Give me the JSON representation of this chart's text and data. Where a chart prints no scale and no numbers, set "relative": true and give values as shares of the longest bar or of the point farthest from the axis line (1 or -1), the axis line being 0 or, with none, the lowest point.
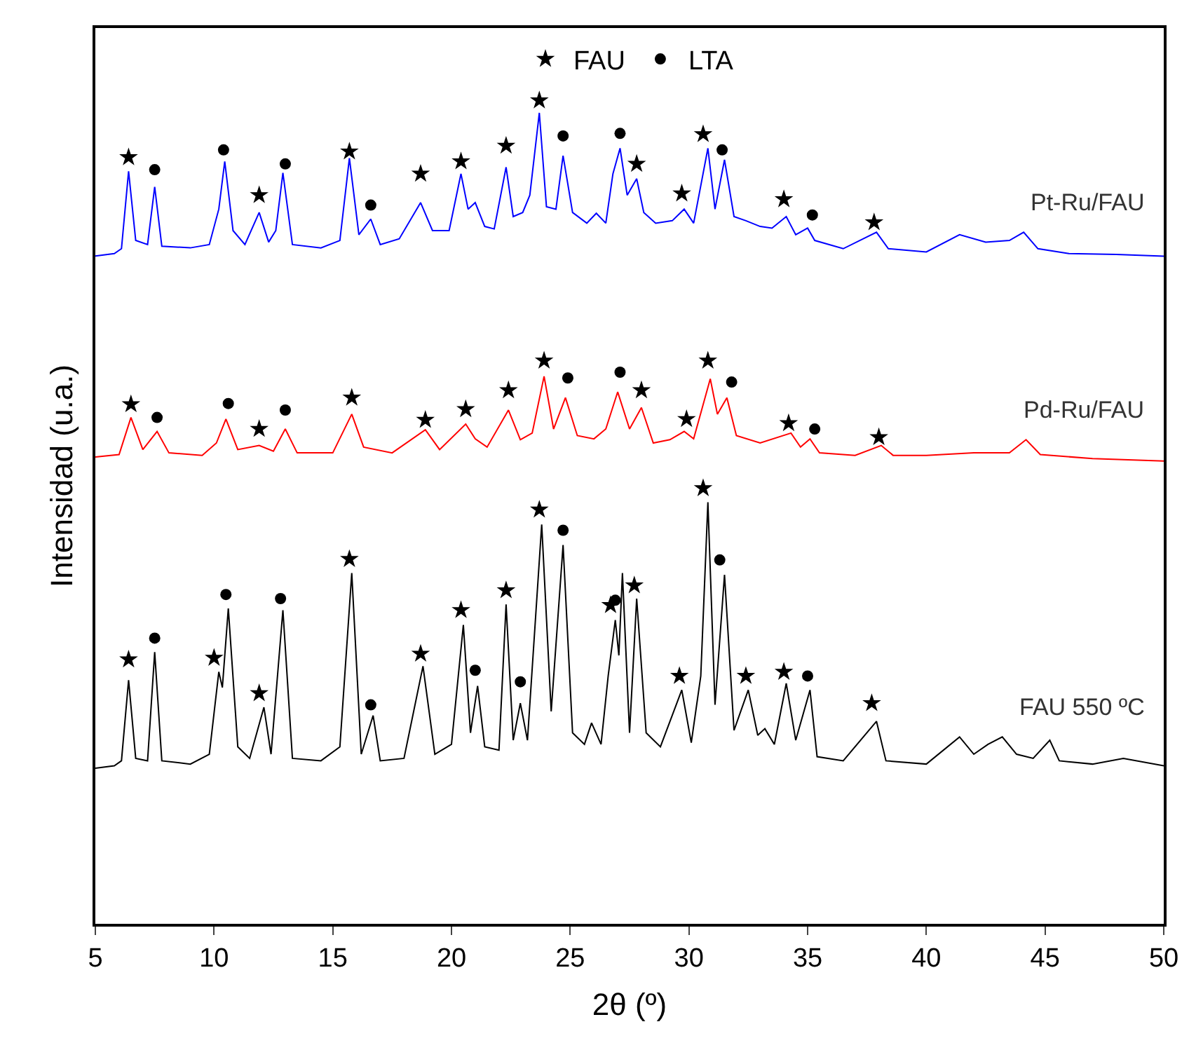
{
  "chart_data": {
    "type": "line",
    "relative": true,
    "xlabel": "2θ (º)",
    "ylabel": "Intensidad (u.a.)",
    "xlim": [
      5,
      50
    ],
    "xticks": [
      5,
      10,
      15,
      20,
      25,
      30,
      35,
      40,
      45,
      50
    ],
    "legend": "top",
    "marker": "none",
    "line_style": "solid",
    "series": [
      {
        "name": "Pt-Ru/FAU",
        "color": "#0000ff",
        "x": [
          5.0,
          5.8,
          6.1,
          6.4,
          6.7,
          7.2,
          7.5,
          7.8,
          9.0,
          9.8,
          10.2,
          10.45,
          10.8,
          11.3,
          11.9,
          12.3,
          12.6,
          12.9,
          13.3,
          14.5,
          15.3,
          15.7,
          16.1,
          16.6,
          17.0,
          17.8,
          18.7,
          19.2,
          19.9,
          20.4,
          20.7,
          21.0,
          21.4,
          21.8,
          22.3,
          22.6,
          23.0,
          23.3,
          23.7,
          24.0,
          24.4,
          24.7,
          25.1,
          25.7,
          26.1,
          26.5,
          26.8,
          27.1,
          27.4,
          27.8,
          28.1,
          28.6,
          29.3,
          29.8,
          30.2,
          30.8,
          31.1,
          31.5,
          31.9,
          32.4,
          33.0,
          33.5,
          34.1,
          34.5,
          35.0,
          35.3,
          36.5,
          37.9,
          38.4,
          40.0,
          41.4,
          42.5,
          43.5,
          44.1,
          44.7,
          46.0,
          48.0,
          50.0
        ],
        "values": [
          0.811,
          0.814,
          0.82,
          0.914,
          0.83,
          0.825,
          0.895,
          0.823,
          0.821,
          0.825,
          0.868,
          0.926,
          0.842,
          0.825,
          0.864,
          0.828,
          0.842,
          0.912,
          0.825,
          0.821,
          0.83,
          0.93,
          0.837,
          0.856,
          0.825,
          0.832,
          0.876,
          0.842,
          0.842,
          0.911,
          0.868,
          0.876,
          0.847,
          0.844,
          0.919,
          0.859,
          0.864,
          0.885,
          0.985,
          0.871,
          0.868,
          0.933,
          0.864,
          0.851,
          0.863,
          0.851,
          0.911,
          0.942,
          0.885,
          0.905,
          0.864,
          0.851,
          0.854,
          0.868,
          0.851,
          0.942,
          0.868,
          0.928,
          0.859,
          0.854,
          0.847,
          0.845,
          0.859,
          0.837,
          0.845,
          0.83,
          0.82,
          0.84,
          0.82,
          0.816,
          0.837,
          0.828,
          0.83,
          0.84,
          0.82,
          0.814,
          0.813,
          0.811
        ]
      },
      {
        "name": "Pd-Ru/FAU",
        "color": "#ff0000",
        "x": [
          5.0,
          6.0,
          6.5,
          7.0,
          7.6,
          8.1,
          9.5,
          10.1,
          10.5,
          11.0,
          11.9,
          12.5,
          13.0,
          13.5,
          15.0,
          15.8,
          16.3,
          17.5,
          18.9,
          19.5,
          20.6,
          21.0,
          21.5,
          22.4,
          22.9,
          23.4,
          23.9,
          24.3,
          24.8,
          25.3,
          26.0,
          26.5,
          27.0,
          27.5,
          28.0,
          28.5,
          29.2,
          29.8,
          30.2,
          30.9,
          31.2,
          31.6,
          32.0,
          33.0,
          34.3,
          34.7,
          35.1,
          35.5,
          37.0,
          38.1,
          38.6,
          40.0,
          42.0,
          43.5,
          44.2,
          44.8,
          47.0,
          50.0
        ],
        "values": [
          0.567,
          0.57,
          0.615,
          0.576,
          0.598,
          0.572,
          0.569,
          0.584,
          0.613,
          0.576,
          0.581,
          0.574,
          0.601,
          0.572,
          0.572,
          0.619,
          0.579,
          0.572,
          0.6,
          0.576,
          0.607,
          0.589,
          0.579,
          0.624,
          0.588,
          0.596,
          0.665,
          0.601,
          0.639,
          0.593,
          0.589,
          0.601,
          0.646,
          0.601,
          0.627,
          0.584,
          0.588,
          0.598,
          0.589,
          0.662,
          0.619,
          0.639,
          0.593,
          0.584,
          0.596,
          0.579,
          0.589,
          0.572,
          0.569,
          0.581,
          0.569,
          0.569,
          0.572,
          0.572,
          0.588,
          0.57,
          0.565,
          0.562
        ]
      },
      {
        "name": "FAU 550 ºC",
        "color": "#000000",
        "x": [
          5.0,
          5.8,
          6.1,
          6.4,
          6.7,
          7.2,
          7.5,
          7.8,
          9.0,
          9.8,
          10.2,
          10.35,
          10.6,
          11.0,
          11.5,
          12.1,
          12.4,
          12.9,
          13.3,
          14.5,
          15.3,
          15.8,
          16.2,
          16.7,
          17.0,
          18.0,
          18.8,
          19.3,
          20.0,
          20.5,
          20.8,
          21.1,
          21.4,
          22.0,
          22.3,
          22.6,
          22.9,
          23.2,
          23.8,
          24.2,
          24.7,
          25.1,
          25.6,
          25.9,
          26.3,
          26.6,
          26.9,
          27.05,
          27.2,
          27.5,
          27.8,
          28.2,
          28.8,
          29.7,
          30.1,
          30.5,
          30.8,
          31.1,
          31.5,
          31.9,
          32.5,
          32.9,
          33.2,
          33.6,
          34.1,
          34.5,
          35.1,
          35.4,
          36.5,
          37.9,
          38.3,
          40.0,
          41.4,
          42.0,
          42.6,
          43.2,
          43.8,
          44.5,
          45.2,
          45.6,
          47.0,
          48.3,
          50.0
        ],
        "values": [
          0.189,
          0.192,
          0.198,
          0.296,
          0.201,
          0.198,
          0.33,
          0.198,
          0.194,
          0.206,
          0.306,
          0.287,
          0.383,
          0.215,
          0.201,
          0.263,
          0.206,
          0.381,
          0.201,
          0.198,
          0.215,
          0.426,
          0.206,
          0.253,
          0.198,
          0.201,
          0.313,
          0.206,
          0.218,
          0.363,
          0.232,
          0.289,
          0.215,
          0.211,
          0.388,
          0.223,
          0.268,
          0.223,
          0.485,
          0.258,
          0.46,
          0.232,
          0.218,
          0.244,
          0.218,
          0.301,
          0.369,
          0.326,
          0.426,
          0.232,
          0.395,
          0.232,
          0.215,
          0.284,
          0.22,
          0.301,
          0.512,
          0.266,
          0.424,
          0.235,
          0.284,
          0.229,
          0.237,
          0.218,
          0.292,
          0.223,
          0.284,
          0.203,
          0.198,
          0.246,
          0.198,
          0.194,
          0.227,
          0.206,
          0.218,
          0.227,
          0.206,
          0.201,
          0.223,
          0.198,
          0.194,
          0.201,
          0.192
        ]
      },
      {
        "name": "FAU",
        "type": "scatter",
        "marker": "star",
        "color": "#000000",
        "x": [
          6.4,
          11.9,
          15.7,
          18.7,
          20.4,
          22.3,
          23.7,
          27.8,
          29.7,
          30.6,
          34.0,
          37.8,
          6.5,
          11.9,
          15.8,
          18.9,
          20.6,
          22.4,
          23.9,
          28.0,
          29.9,
          30.8,
          34.2,
          38.0,
          6.4,
          10.0,
          11.9,
          15.7,
          18.7,
          20.4,
          22.3,
          23.7,
          26.7,
          27.7,
          29.6,
          30.6,
          32.4,
          34.0,
          37.7
        ],
        "values": [
          0.931,
          0.885,
          0.938,
          0.911,
          0.926,
          0.945,
          1.0,
          0.923,
          0.887,
          0.959,
          0.88,
          0.852,
          0.631,
          0.601,
          0.639,
          0.612,
          0.625,
          0.648,
          0.684,
          0.648,
          0.613,
          0.684,
          0.608,
          0.591,
          0.321,
          0.323,
          0.28,
          0.443,
          0.328,
          0.381,
          0.405,
          0.503,
          0.387,
          0.411,
          0.301,
          0.529,
          0.301,
          0.306,
          0.268
        ]
      },
      {
        "name": "LTA",
        "type": "scatter",
        "marker": "circle",
        "color": "#000000",
        "x": [
          7.5,
          10.4,
          13.0,
          16.6,
          24.7,
          27.1,
          31.4,
          35.2,
          7.6,
          10.6,
          13.0,
          24.9,
          27.1,
          31.8,
          35.3,
          7.5,
          10.5,
          12.8,
          16.6,
          21.0,
          22.9,
          24.7,
          26.9,
          31.3,
          35.0
        ],
        "values": [
          0.916,
          0.94,
          0.923,
          0.873,
          0.957,
          0.96,
          0.94,
          0.861,
          0.615,
          0.632,
          0.624,
          0.663,
          0.67,
          0.658,
          0.601,
          0.347,
          0.4,
          0.395,
          0.266,
          0.308,
          0.294,
          0.478,
          0.393,
          0.442,
          0.301
        ]
      }
    ]
  }
}
